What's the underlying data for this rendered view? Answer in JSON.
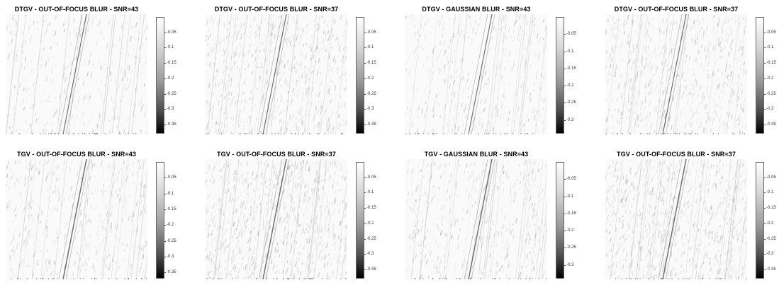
{
  "figure": {
    "rows": [
      {
        "panels": [
          {
            "title": "DTGV - OUT-OF-FOCUS BLUR - SNR=43",
            "ticks": [
              "-0.05",
              "-0.1",
              "-0.15",
              "-0.2",
              "-0.25",
              "-0.3",
              "-0.35"
            ],
            "cmin": -0.38
          },
          {
            "title": "DTGV - OUT-OF-FOCUS BLUR - SNR=37",
            "ticks": [
              "-0.05",
              "-0.1",
              "-0.15",
              "-0.2",
              "-0.25",
              "-0.3",
              "-0.35"
            ],
            "cmin": -0.38
          },
          {
            "title": "DTGV - GAUSSIAN BLUR - SNR=43",
            "ticks": [
              "-0.05",
              "-0.1",
              "-0.15",
              "-0.2",
              "-0.25",
              "-0.3"
            ],
            "cmin": -0.34
          },
          {
            "title": "DTGV - OUT-OF-FOCUS BLUR - SNR=37",
            "ticks": [
              "-0.05",
              "-0.1",
              "-0.15",
              "-0.2",
              "-0.25",
              "-0.3",
              "-0.35"
            ],
            "cmin": -0.38
          }
        ]
      },
      {
        "panels": [
          {
            "title": "TGV - OUT-OF-FOCUS BLUR - SNR=43",
            "ticks": [
              "-0.05",
              "-0.1",
              "-0.15",
              "-0.2",
              "-0.25",
              "-0.3",
              "-0.35"
            ],
            "cmin": -0.37
          },
          {
            "title": "TGV - OUT-OF-FOCUS BLUR - SNR=37",
            "ticks": [
              "-0.05",
              "-0.1",
              "-0.15",
              "-0.2",
              "-0.25",
              "-0.3",
              "-0.35"
            ],
            "cmin": -0.38
          },
          {
            "title": "TGV - GAUSSIAN BLUR - SNR=43",
            "ticks": [
              "-0.05",
              "-0.1",
              "-0.15",
              "-0.2",
              "-0.25",
              "-0.3"
            ],
            "cmin": -0.34
          },
          {
            "title": "TGV - OUT-OF-FOCUS BLUR - SNR=37",
            "ticks": [
              "-0.05",
              "-0.1",
              "-0.15",
              "-0.2",
              "-0.25",
              "-0.3",
              "-0.35"
            ],
            "cmin": -0.38
          }
        ]
      }
    ]
  }
}
